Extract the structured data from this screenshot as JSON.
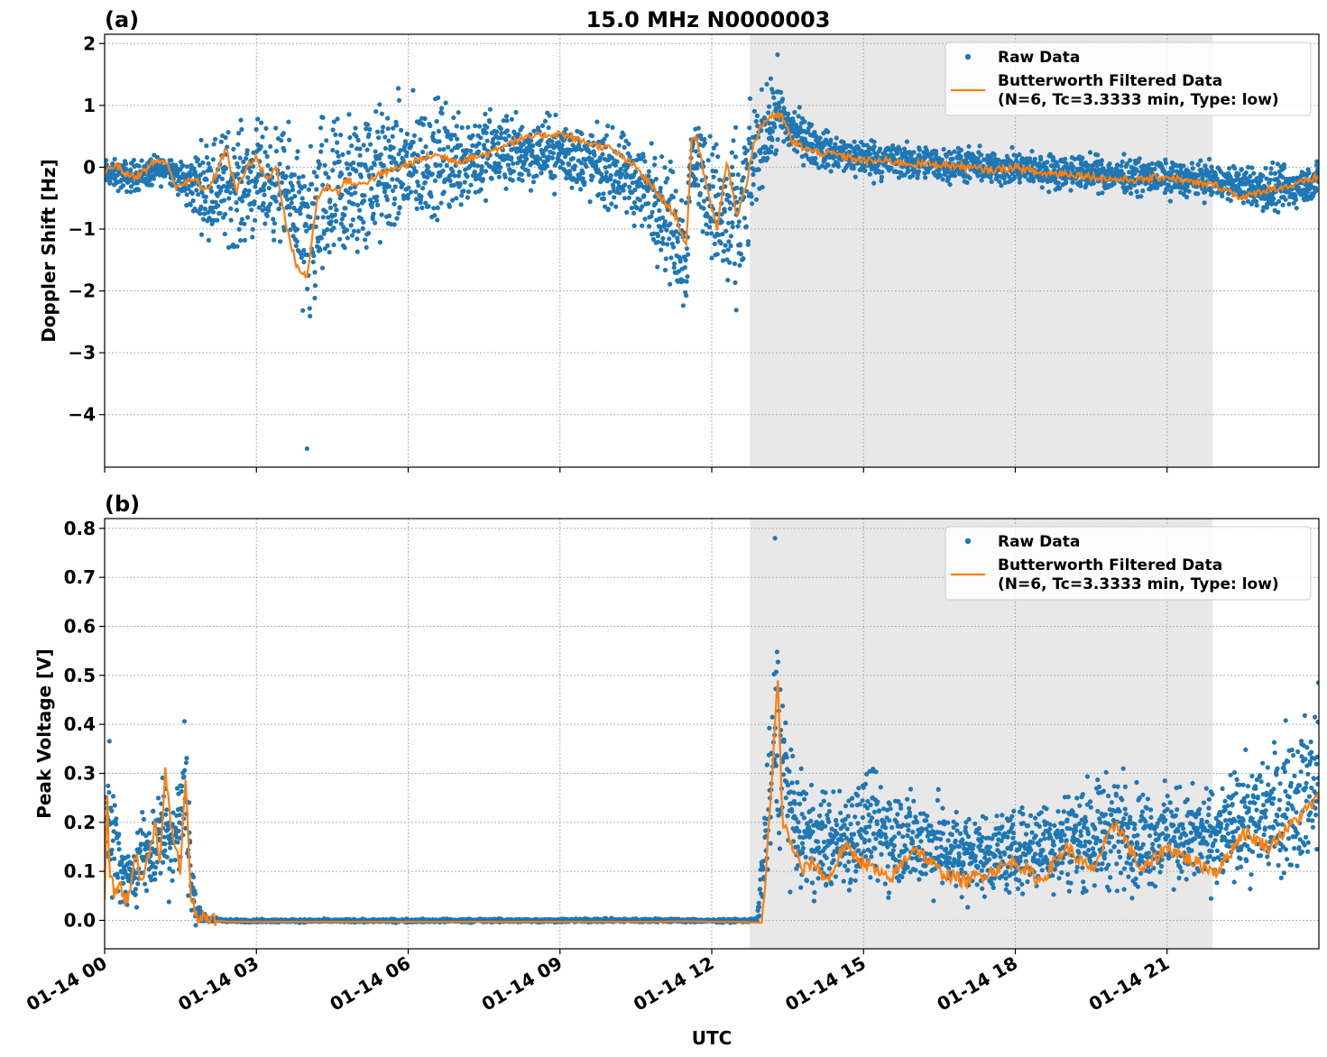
{
  "figure": {
    "title": "15.0 MHz N0000003",
    "xlabel": "UTC",
    "xtick_labels": [
      "01-14 00",
      "01-14 03",
      "01-14 06",
      "01-14 09",
      "01-14 12",
      "01-14 15",
      "01-14 18",
      "01-14 21"
    ]
  },
  "colors": {
    "raw": "#1f77b4",
    "filtered": "#ff7f0e",
    "shade": "#e8e8e8"
  },
  "chart_data": [
    {
      "type": "scatter",
      "panel_label": "(a)",
      "ylabel": "Doppler Shift [Hz]",
      "xlim_hours": [
        0,
        24
      ],
      "ylim": [
        -4.85,
        2.15
      ],
      "yticks": [
        2,
        1,
        0,
        -1,
        -2,
        -3,
        -4
      ],
      "ytick_labels": [
        "2",
        "1",
        "0",
        "−1",
        "−2",
        "−3",
        "−4"
      ],
      "grid": true,
      "legend_position": "top-right",
      "shaded_interval_hours": [
        12.75,
        21.9
      ],
      "legend": {
        "raw": "Raw Data",
        "filtered_line1": "Butterworth Filtered Data",
        "filtered_line2": "(N=6, Tc=3.3333 min, Type: low)"
      },
      "series": [
        {
          "name": "Butterworth Filtered Data",
          "x_hours": [
            0,
            0.2,
            0.4,
            0.6,
            0.8,
            1.0,
            1.2,
            1.4,
            1.6,
            1.8,
            2.0,
            2.2,
            2.4,
            2.6,
            2.8,
            3.0,
            3.2,
            3.4,
            3.6,
            3.8,
            4.0,
            4.2,
            4.4,
            4.6,
            4.8,
            5.0,
            5.5,
            6.0,
            6.5,
            7.0,
            7.5,
            8.0,
            8.5,
            9.0,
            9.5,
            10.0,
            10.5,
            11.0,
            11.3,
            11.5,
            11.6,
            11.7,
            11.9,
            12.1,
            12.3,
            12.5,
            12.6,
            12.7,
            12.8,
            13.0,
            13.2,
            13.4,
            13.6,
            14.0,
            14.5,
            15.0,
            15.5,
            16.0,
            16.5,
            17.0,
            17.5,
            18.0,
            18.5,
            19.0,
            19.5,
            20.0,
            20.5,
            21.0,
            21.5,
            22.0,
            22.5,
            23.0,
            23.5,
            24.0
          ],
          "y": [
            -0.1,
            0.05,
            -0.1,
            -0.15,
            -0.05,
            0.1,
            0.1,
            -0.3,
            -0.25,
            -0.2,
            -0.4,
            -0.1,
            0.3,
            -0.4,
            0.0,
            0.15,
            -0.2,
            0.0,
            -1.0,
            -1.6,
            -1.8,
            -0.5,
            -0.3,
            -0.4,
            -0.2,
            -0.3,
            -0.1,
            0.05,
            0.2,
            0.1,
            0.2,
            0.4,
            0.5,
            0.55,
            0.4,
            0.3,
            0.0,
            -0.5,
            -0.8,
            -1.3,
            0.4,
            0.5,
            -0.3,
            -1.0,
            0.1,
            -0.8,
            -0.5,
            -0.2,
            0.3,
            0.7,
            0.85,
            0.8,
            0.4,
            0.25,
            0.2,
            0.1,
            0.1,
            0.05,
            0.05,
            0.0,
            -0.05,
            0.0,
            -0.1,
            -0.1,
            -0.15,
            -0.2,
            -0.2,
            -0.15,
            -0.25,
            -0.3,
            -0.5,
            -0.35,
            -0.3,
            -0.15
          ]
        },
        {
          "name": "Raw Data",
          "envelope_x_hours": [
            0,
            0.5,
            1.0,
            1.3,
            1.6,
            1.8,
            2.0,
            2.3,
            2.6,
            3.0,
            3.5,
            3.8,
            4.0,
            4.2,
            4.5,
            5.0,
            5.5,
            6.0,
            6.5,
            7.0,
            7.5,
            8.0,
            8.5,
            9.0,
            9.5,
            10.0,
            10.5,
            11.0,
            11.3,
            11.5,
            11.6,
            11.8,
            12.0,
            12.2,
            12.4,
            12.6,
            12.8,
            13.0,
            13.3,
            13.6,
            14.0,
            14.5,
            15.0,
            16.0,
            17.0,
            18.0,
            19.0,
            20.0,
            21.0,
            22.0,
            22.5,
            23.0,
            23.5,
            24.0
          ],
          "envelope_upper": [
            0.2,
            0.2,
            0.25,
            0.3,
            0.2,
            0.5,
            0.7,
            0.9,
            1.0,
            1.0,
            0.9,
            0.8,
            0.5,
            1.2,
            1.3,
            1.4,
            1.4,
            1.4,
            1.4,
            1.3,
            1.2,
            1.1,
            1.0,
            1.0,
            0.9,
            0.8,
            0.7,
            0.6,
            0.3,
            0.1,
            1.2,
            1.1,
            0.8,
            0.9,
            0.9,
            1.0,
            1.3,
            1.5,
            1.6,
            1.2,
            0.8,
            0.6,
            0.6,
            0.45,
            0.4,
            0.35,
            0.3,
            0.25,
            0.2,
            0.15,
            0.1,
            0.15,
            0.1,
            0.2
          ],
          "envelope_lower": [
            -0.4,
            -0.5,
            -0.4,
            -0.3,
            -0.8,
            -1.0,
            -1.3,
            -1.5,
            -1.6,
            -1.4,
            -1.5,
            -2.0,
            -3.6,
            -2.8,
            -2.4,
            -2.0,
            -1.6,
            -1.4,
            -1.2,
            -1.0,
            -0.8,
            -0.6,
            -0.5,
            -0.5,
            -0.7,
            -0.9,
            -1.2,
            -1.8,
            -2.5,
            -2.7,
            -0.8,
            -1.2,
            -1.8,
            -2.6,
            -2.9,
            -2.6,
            -1.2,
            -0.5,
            0.0,
            0.0,
            -0.1,
            -0.2,
            -0.3,
            -0.3,
            -0.35,
            -0.4,
            -0.45,
            -0.5,
            -0.55,
            -0.6,
            -0.7,
            -0.9,
            -0.8,
            -0.6
          ],
          "y_max": 1.82,
          "y_min": -4.55
        }
      ]
    },
    {
      "type": "scatter",
      "panel_label": "(b)",
      "ylabel": "Peak Voltage [V]",
      "xlim_hours": [
        0,
        24
      ],
      "ylim": [
        -0.058,
        0.82
      ],
      "yticks": [
        0.8,
        0.7,
        0.6,
        0.5,
        0.4,
        0.3,
        0.2,
        0.1,
        0.0
      ],
      "ytick_labels": [
        "0.8",
        "0.7",
        "0.6",
        "0.5",
        "0.4",
        "0.3",
        "0.2",
        "0.1",
        "0.0"
      ],
      "grid": true,
      "legend_position": "top-right",
      "shaded_interval_hours": [
        12.75,
        21.9
      ],
      "legend": {
        "raw": "Raw Data",
        "filtered_line1": "Butterworth Filtered Data",
        "filtered_line2": "(N=6, Tc=3.3333 min, Type: low)"
      },
      "series": [
        {
          "name": "Butterworth Filtered Data",
          "x_hours": [
            0,
            0.05,
            0.1,
            0.2,
            0.3,
            0.4,
            0.5,
            0.6,
            0.7,
            0.8,
            0.9,
            1.0,
            1.1,
            1.2,
            1.3,
            1.4,
            1.5,
            1.6,
            1.7,
            1.8,
            2.0,
            2.5,
            11.0,
            11.5,
            12.0,
            12.5,
            13.0,
            13.2,
            13.3,
            13.4,
            13.6,
            13.8,
            14.0,
            14.3,
            14.6,
            15.0,
            15.5,
            16.0,
            16.5,
            17.0,
            17.5,
            18.0,
            18.5,
            19.0,
            19.5,
            20.0,
            20.5,
            21.0,
            21.5,
            22.0,
            22.5,
            23.0,
            23.5,
            24.0
          ],
          "y": [
            0.05,
            0.25,
            0.1,
            0.05,
            0.08,
            0.04,
            0.05,
            0.15,
            0.08,
            0.1,
            0.15,
            0.2,
            0.12,
            0.3,
            0.2,
            0.15,
            0.1,
            0.3,
            0.05,
            0.01,
            0.0,
            -0.003,
            -0.003,
            -0.002,
            -0.003,
            -0.003,
            -0.005,
            0.3,
            0.5,
            0.2,
            0.15,
            0.1,
            0.12,
            0.08,
            0.15,
            0.12,
            0.08,
            0.15,
            0.1,
            0.08,
            0.1,
            0.12,
            0.08,
            0.15,
            0.1,
            0.2,
            0.1,
            0.15,
            0.12,
            0.1,
            0.18,
            0.15,
            0.2,
            0.25
          ]
        },
        {
          "name": "Raw Data",
          "envelope_x_hours": [
            0,
            0.1,
            0.3,
            0.5,
            0.7,
            0.9,
            1.1,
            1.3,
            1.5,
            1.6,
            1.7,
            1.8,
            2.0,
            2.5,
            11.0,
            12.0,
            12.9,
            13.1,
            13.25,
            13.4,
            13.6,
            14.0,
            14.5,
            15.0,
            16.0,
            17.0,
            18.0,
            19.0,
            20.0,
            20.5,
            21.0,
            22.0,
            22.5,
            23.0,
            23.5,
            24.0
          ],
          "envelope_upper": [
            0.3,
            0.45,
            0.2,
            0.15,
            0.25,
            0.25,
            0.35,
            0.3,
            0.35,
            0.5,
            0.2,
            0.05,
            0.01,
            0.003,
            0.005,
            0.003,
            0.005,
            0.4,
            0.65,
            0.6,
            0.35,
            0.3,
            0.3,
            0.35,
            0.3,
            0.25,
            0.25,
            0.3,
            0.35,
            0.3,
            0.3,
            0.3,
            0.35,
            0.4,
            0.45,
            0.5
          ],
          "envelope_lower": [
            0.01,
            0.02,
            0.01,
            0.01,
            0.02,
            0.02,
            0.03,
            0.02,
            0.05,
            0.05,
            0.0,
            -0.005,
            -0.005,
            -0.005,
            -0.005,
            -0.005,
            -0.005,
            0.0,
            0.1,
            0.08,
            0.05,
            0.02,
            0.02,
            0.03,
            0.03,
            0.02,
            0.03,
            0.03,
            0.03,
            0.03,
            0.04,
            0.04,
            0.04,
            0.05,
            0.05,
            0.06
          ],
          "y_max": 0.78,
          "y_min": -0.01
        }
      ]
    }
  ]
}
